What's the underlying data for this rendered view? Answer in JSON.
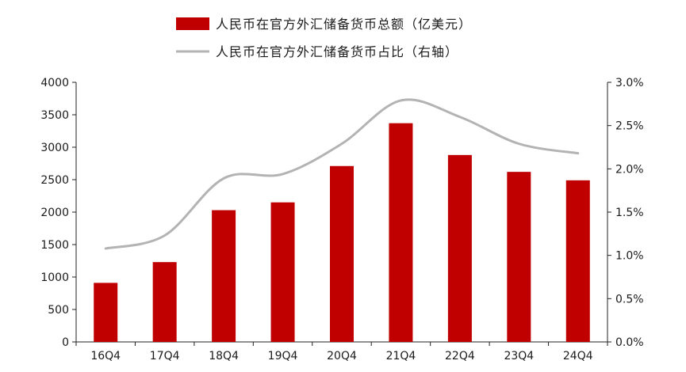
{
  "chart_data": {
    "type": "bar",
    "categories": [
      "16Q4",
      "17Q4",
      "18Q4",
      "19Q4",
      "20Q4",
      "21Q4",
      "22Q4",
      "23Q4",
      "24Q4"
    ],
    "series": [
      {
        "name": "人民币在官方外汇储备货币总额（亿美元）",
        "type": "bar",
        "axis": "left",
        "color": "#c00000",
        "values": [
          910,
          1230,
          2030,
          2150,
          2710,
          3370,
          2880,
          2620,
          2490
        ]
      },
      {
        "name": "人民币在官方外汇储备货币占比（右轴）",
        "type": "line",
        "axis": "right",
        "color": "#b3b3b3",
        "values": [
          1.08,
          1.23,
          1.89,
          1.94,
          2.29,
          2.79,
          2.6,
          2.29,
          2.18
        ]
      }
    ],
    "y_left": {
      "min": 0,
      "max": 4000,
      "ticks": [
        "0",
        "500",
        "1000",
        "1500",
        "2000",
        "2500",
        "3000",
        "3500",
        "4000"
      ]
    },
    "y_right": {
      "min": 0,
      "max": 3.0,
      "ticks": [
        "0.0%",
        "0.5%",
        "1.0%",
        "1.5%",
        "2.0%",
        "2.5%",
        "3.0%"
      ]
    },
    "legend_position": "top-center",
    "grid": false
  }
}
